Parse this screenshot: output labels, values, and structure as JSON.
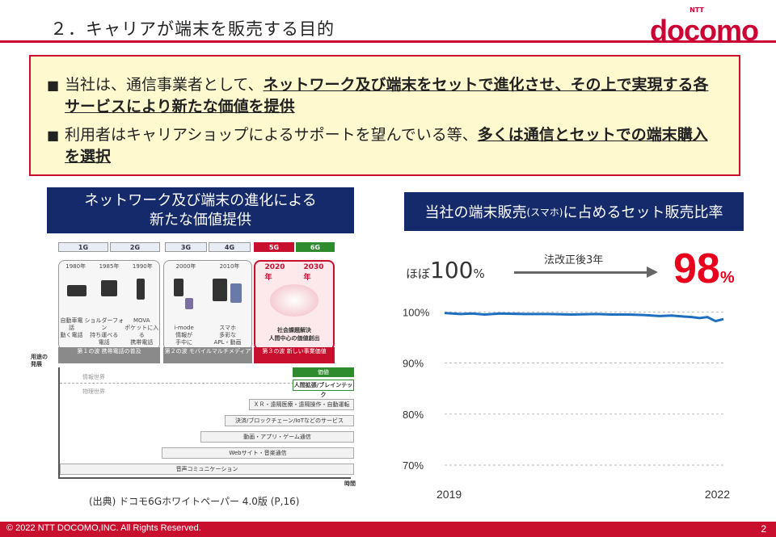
{
  "header": {
    "title": "２．キャリアが端末を販売する目的",
    "logo_ntt": "NTT",
    "logo": "docomo"
  },
  "callout": {
    "bullets": [
      {
        "pre": "当社は、通信事業者として、",
        "emph": "ネットワーク及び端末をセットで進化させ、その上で実現する各サービスにより新たな価値を提供",
        "post": ""
      },
      {
        "pre": "利用者はキャリアショップによるサポートを望んでいる等、",
        "emph": "多くは通信とセットでの端末購入を選択",
        "post": ""
      }
    ]
  },
  "left_banner": {
    "line1": "ネットワーク及び端末の進化による",
    "line2": "新たな価値提供"
  },
  "diagram": {
    "generations": [
      "1G",
      "2G",
      "3G",
      "4G",
      "5G",
      "6G"
    ],
    "era1": {
      "years": [
        "1980年",
        "1985年",
        "1990年"
      ],
      "captions": [
        "自動車電話\n動く電話",
        "ショルダーフォン\n持ち運べる\n電話",
        "MOVA\nポケットに入る\n携帯電話"
      ]
    },
    "era2": {
      "years": [
        "2000年",
        "2010年"
      ],
      "captions": [
        "i-mode\n情報が\n手中に",
        "スマホ\n多彩な\nAPL・動画"
      ]
    },
    "era3": {
      "years": [
        "2020\n年",
        "2030\n年"
      ],
      "text": "社会課題解決\n人間中心の価値創出"
    },
    "waves": [
      "第１の波\n携帯電話の普及",
      "第２の波\nモバイルマルチメディア",
      "第３の波\n新しい事業価値"
    ],
    "y_label": "用途の\n発展",
    "x_label": "時間",
    "world_upper": "情報世界",
    "world_lower": "物理世界",
    "stairs": [
      "人間拡張/ブレインテック",
      "ＸＲ・遠隔医療・遠隔操作・自動運転",
      "決済/ブロックチェーン/IoTなどのサービス",
      "動画・アプリ・ゲーム通信",
      "Webサイト・音楽通信",
      "音声コミュニケーション"
    ],
    "top_tag": "価値",
    "source": "(出典) ドコモ6Gホワイトペーパー 4.0版 (P,16)"
  },
  "right_banner": {
    "main": "当社の端末販売",
    "small": "(スマホ)",
    "rest": "に占めるセット販売比率"
  },
  "stats": {
    "before_prefix": "ほぼ",
    "before_value": "100",
    "before_unit": "%",
    "arrow_label": "法改正後3年",
    "after_value": "98",
    "after_unit": "%"
  },
  "chart_data": {
    "type": "line",
    "title": "当社の端末販売(スマホ)に占めるセット販売比率",
    "xlabel": "",
    "ylabel": "",
    "x_tick_labels": [
      "2019",
      "2022"
    ],
    "y_tick_labels": [
      "100%",
      "90%",
      "80%",
      "70%"
    ],
    "y_ticks": [
      100,
      90,
      80,
      70
    ],
    "ylim": [
      67,
      101
    ],
    "xlim": [
      2019.0,
      2022.5
    ],
    "grid": true,
    "color": "#1f6fc0",
    "series": [
      {
        "x": [
          2019.0,
          2019.2,
          2019.35,
          2019.5,
          2019.7,
          2020.0,
          2020.3,
          2020.6,
          2020.9,
          2021.1,
          2021.3,
          2021.5,
          2021.7,
          2021.85,
          2022.0,
          2022.1,
          2022.2,
          2022.3,
          2022.4,
          2022.5
        ],
        "values": [
          99.8,
          99.6,
          99.7,
          99.5,
          99.7,
          99.6,
          99.6,
          99.5,
          99.6,
          99.5,
          99.5,
          99.4,
          99.2,
          99.3,
          99.1,
          99.0,
          98.8,
          99.0,
          98.2,
          98.6
        ]
      }
    ]
  },
  "footer": {
    "copyright": "© 2022 NTT DOCOMO,INC. All Rights Reserved.",
    "page": "2"
  }
}
